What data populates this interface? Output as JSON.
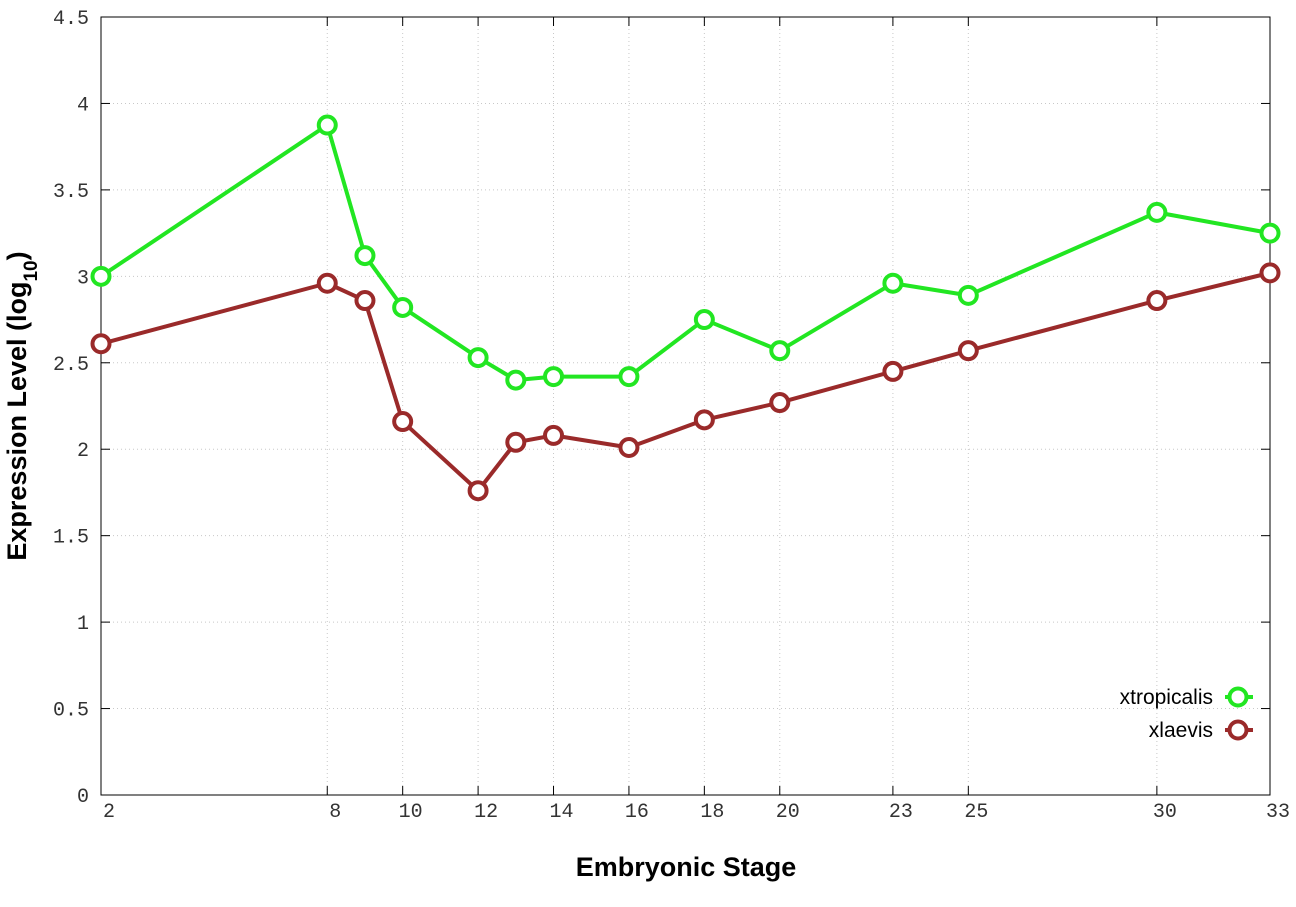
{
  "chart_data": {
    "type": "line",
    "xlabel": "Embryonic Stage",
    "ylabel": {
      "text": "Expression Level (log",
      "subscript": "10",
      "suffix": ")"
    },
    "x": [
      2,
      8,
      9,
      10,
      12,
      13,
      14,
      16,
      18,
      20,
      23,
      25,
      30,
      33
    ],
    "series": [
      {
        "name": "xtropicalis",
        "color": "#22e622",
        "values": [
          3.0,
          3.875,
          3.12,
          2.82,
          2.53,
          2.4,
          2.42,
          2.42,
          2.75,
          2.57,
          2.96,
          2.89,
          3.37,
          3.25
        ]
      },
      {
        "name": "xlaevis",
        "color": "#9a2a2a",
        "values": [
          2.61,
          2.96,
          2.86,
          2.16,
          1.76,
          2.04,
          2.08,
          2.01,
          2.17,
          2.27,
          2.45,
          2.57,
          2.86,
          3.02
        ]
      }
    ],
    "xlim": [
      2,
      33
    ],
    "xticks": [
      2,
      8,
      10,
      12,
      14,
      16,
      18,
      20,
      23,
      25,
      30,
      33
    ],
    "ylim": [
      0,
      4.5
    ],
    "yticks": [
      0,
      0.5,
      1,
      1.5,
      2,
      2.5,
      3,
      3.5,
      4,
      4.5
    ],
    "grid": true,
    "legend": "lower right"
  }
}
